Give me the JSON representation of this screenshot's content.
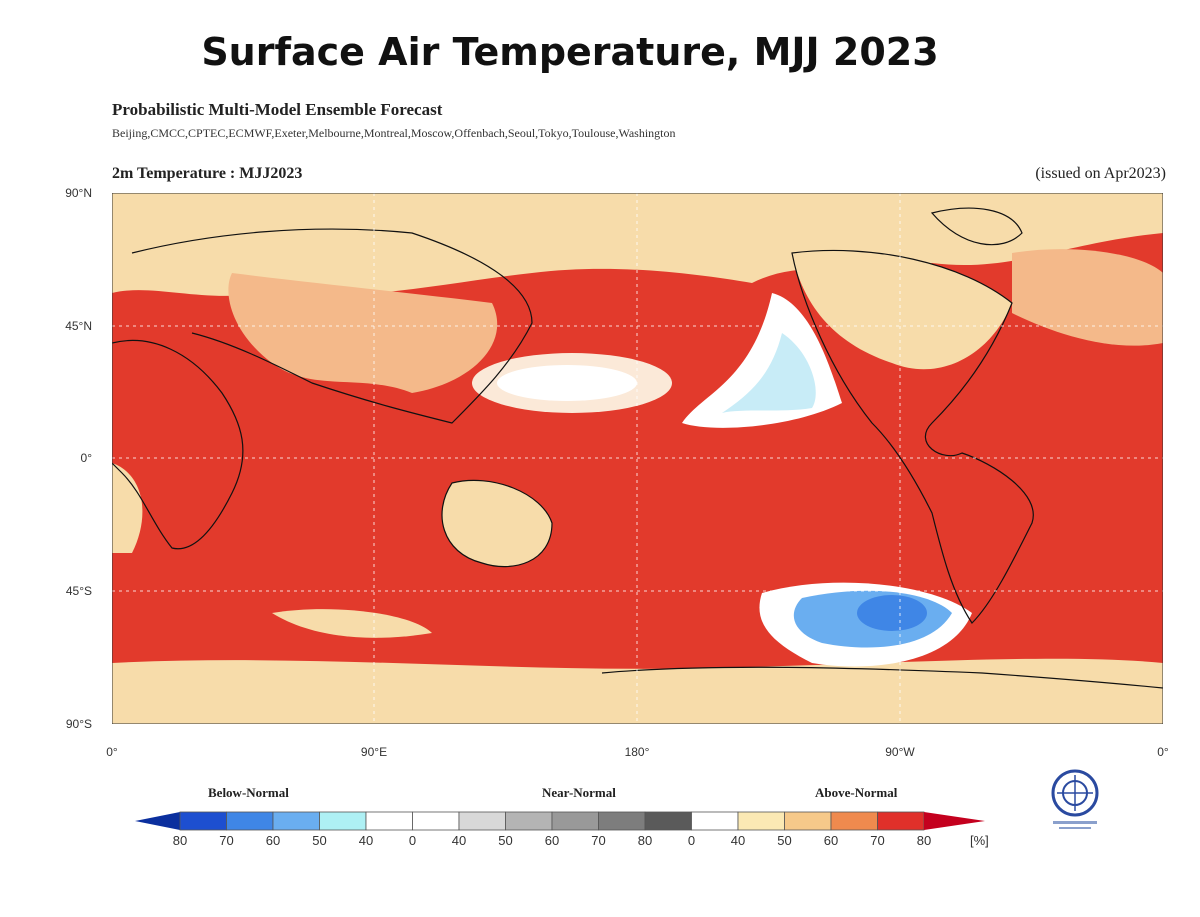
{
  "title": "Surface Air Temperature, MJJ 2023",
  "subtitle": "Probabilistic Multi-Model Ensemble Forecast",
  "centres": "Beijing,CMCC,CPTEC,ECMWF,Exeter,Melbourne,Montreal,Moscow,Offenbach,Seoul,Tokyo,Toulouse,Washington",
  "variable_label": "2m Temperature : MJJ2023",
  "issued": "(issued on Apr2023)",
  "lat_labels": [
    "90°N",
    "45°N",
    "0°",
    "45°S",
    "90°S"
  ],
  "lon_labels": [
    "0°",
    "90°E",
    "180°",
    "90°W",
    "0°"
  ],
  "legend": {
    "categories": [
      "Below-Normal",
      "Near-Normal",
      "Above-Normal"
    ],
    "ticks": [
      "80",
      "70",
      "60",
      "50",
      "40",
      "0",
      "40",
      "50",
      "60",
      "70",
      "80",
      "0",
      "40",
      "50",
      "60",
      "70",
      "80"
    ],
    "unit": "[%]",
    "colors": [
      "#1d4fd0",
      "#3f86e6",
      "#6aaef0",
      "#aef0f4",
      "#ffffff",
      "#ffffff",
      "#d8d8d8",
      "#b4b4b4",
      "#999999",
      "#7d7d7d",
      "#5a5a5a",
      "#ffffff",
      "#fbe9b4",
      "#f6c98a",
      "#ef8a4e",
      "#e0302a"
    ],
    "arrow_low": "#0b2f9e",
    "arrow_high": "#c4001e"
  },
  "map_colors": {
    "ocean_above": "#e23a2c",
    "land_tan": "#f7dcaa",
    "white": "#ffffff",
    "light_blue": "#c8ecf7",
    "blue": "#3f86e6"
  },
  "logo": "WMO"
}
